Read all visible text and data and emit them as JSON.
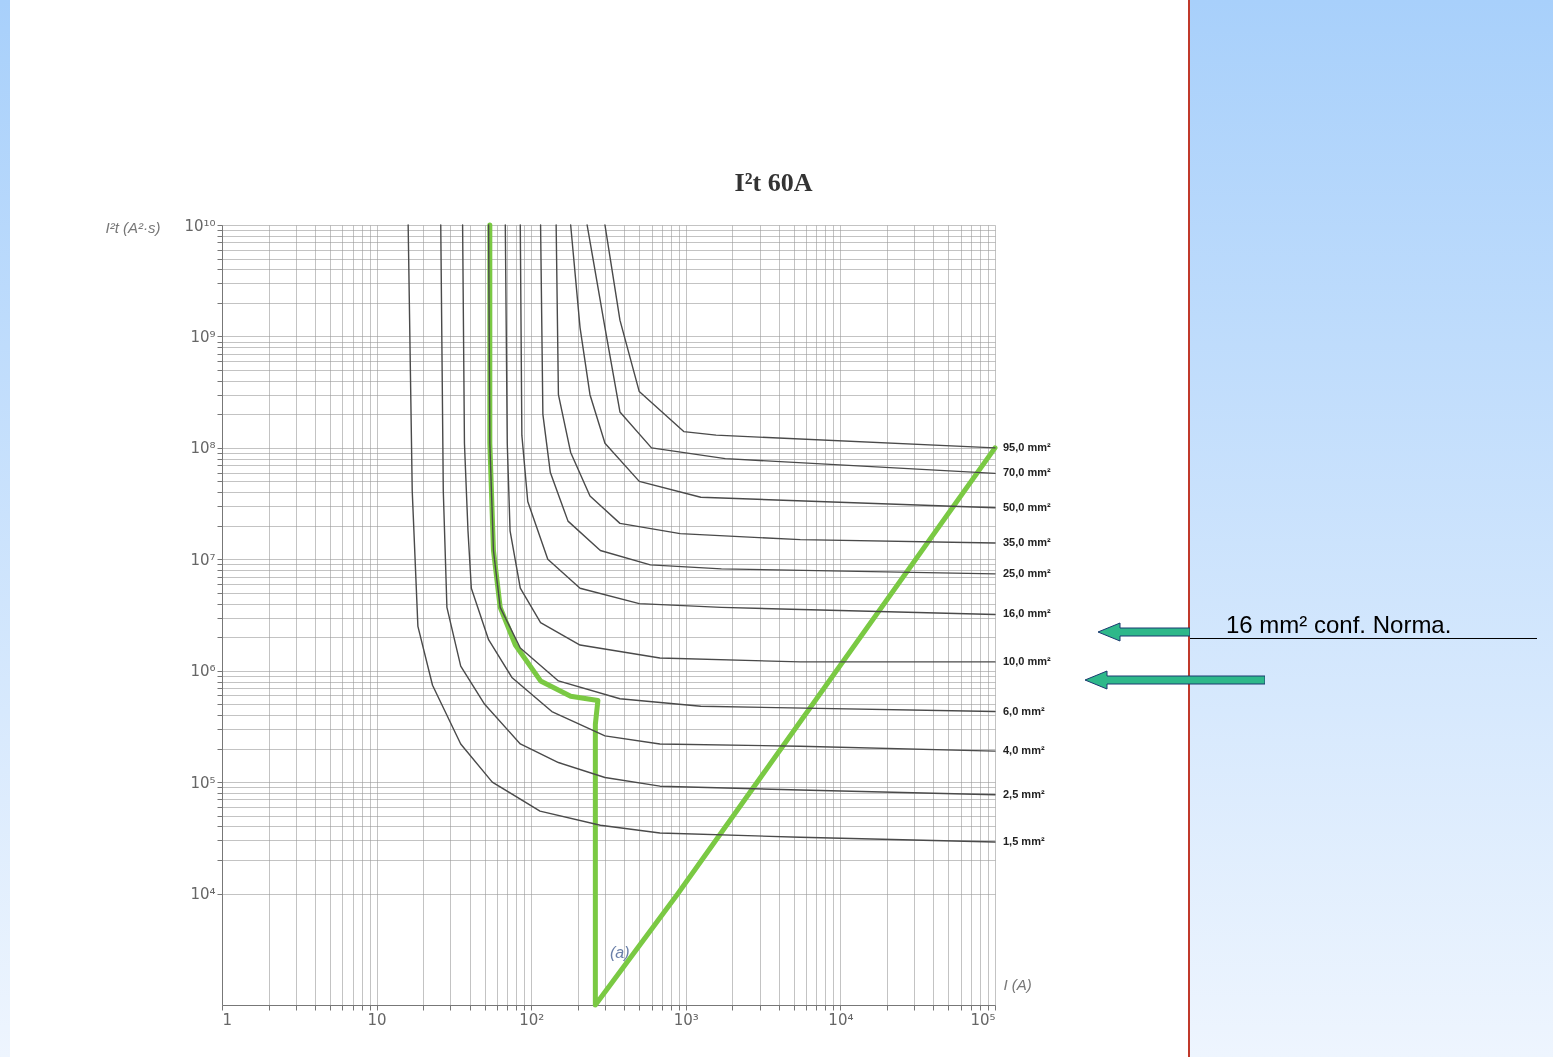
{
  "chart_data": {
    "type": "line",
    "title": "I²t 60A",
    "xlabel": "I (A)",
    "ylabel": "I²t (A²·s)",
    "log": "xy",
    "grid": true,
    "legend": false,
    "xlim": [
      1,
      100000
    ],
    "ylim": [
      1000,
      10000000000
    ],
    "xticks": [
      1,
      {
        "value": 2,
        "label": null
      },
      {
        "value": 3,
        "label": null
      },
      {
        "value": 4,
        "label": null
      },
      {
        "value": 5,
        "label": null
      },
      {
        "value": 6,
        "label": null
      },
      {
        "value": 7,
        "label": null
      },
      {
        "value": 8,
        "label": null
      },
      {
        "value": 9,
        "label": null
      },
      10,
      {
        "value": 20,
        "label": null
      },
      {
        "value": 30,
        "label": null
      },
      {
        "value": 40,
        "label": null
      },
      {
        "value": 50,
        "label": null
      },
      {
        "value": 60,
        "label": null
      },
      {
        "value": 70,
        "label": null
      },
      {
        "value": 80,
        "label": null
      },
      {
        "value": 90,
        "label": null
      },
      {
        "value": 100,
        "label": "10²"
      },
      {
        "value": 200,
        "label": null
      },
      {
        "value": 300,
        "label": null
      },
      {
        "value": 400,
        "label": null
      },
      {
        "value": 500,
        "label": null
      },
      {
        "value": 600,
        "label": null
      },
      {
        "value": 700,
        "label": null
      },
      {
        "value": 800,
        "label": null
      },
      {
        "value": 900,
        "label": null
      },
      {
        "value": 1000,
        "label": "10³"
      },
      {
        "value": 2000,
        "label": null
      },
      {
        "value": 3000,
        "label": null
      },
      {
        "value": 4000,
        "label": null
      },
      {
        "value": 5000,
        "label": null
      },
      {
        "value": 6000,
        "label": null
      },
      {
        "value": 7000,
        "label": null
      },
      {
        "value": 8000,
        "label": null
      },
      {
        "value": 9000,
        "label": null
      },
      {
        "value": 10000,
        "label": "10⁴"
      },
      {
        "value": 20000,
        "label": null
      },
      {
        "value": 30000,
        "label": null
      },
      {
        "value": 40000,
        "label": null
      },
      {
        "value": 50000,
        "label": null
      },
      {
        "value": 60000,
        "label": null
      },
      {
        "value": 70000,
        "label": null
      },
      {
        "value": 80000,
        "label": null
      },
      {
        "value": 90000,
        "label": null
      },
      {
        "value": 100000,
        "label": "10⁵"
      }
    ],
    "yticks": [
      {
        "value": 10000,
        "label": "10⁴"
      },
      {
        "value": 20000,
        "label": null
      },
      {
        "value": 30000,
        "label": null
      },
      {
        "value": 40000,
        "label": null
      },
      {
        "value": 50000,
        "label": null
      },
      {
        "value": 60000,
        "label": null
      },
      {
        "value": 70000,
        "label": null
      },
      {
        "value": 80000,
        "label": null
      },
      {
        "value": 90000,
        "label": null
      },
      {
        "value": 100000,
        "label": "10⁵"
      },
      {
        "value": 200000,
        "label": null
      },
      {
        "value": 300000,
        "label": null
      },
      {
        "value": 400000,
        "label": null
      },
      {
        "value": 500000,
        "label": null
      },
      {
        "value": 600000,
        "label": null
      },
      {
        "value": 700000,
        "label": null
      },
      {
        "value": 800000,
        "label": null
      },
      {
        "value": 900000,
        "label": null
      },
      {
        "value": 1000000,
        "label": "10⁶"
      },
      {
        "value": 2000000,
        "label": null
      },
      {
        "value": 3000000,
        "label": null
      },
      {
        "value": 4000000,
        "label": null
      },
      {
        "value": 5000000,
        "label": null
      },
      {
        "value": 6000000,
        "label": null
      },
      {
        "value": 7000000,
        "label": null
      },
      {
        "value": 8000000,
        "label": null
      },
      {
        "value": 9000000,
        "label": null
      },
      {
        "value": 10000000,
        "label": "10⁷"
      },
      {
        "value": 20000000,
        "label": null
      },
      {
        "value": 30000000,
        "label": null
      },
      {
        "value": 40000000,
        "label": null
      },
      {
        "value": 50000000,
        "label": null
      },
      {
        "value": 60000000,
        "label": null
      },
      {
        "value": 70000000,
        "label": null
      },
      {
        "value": 80000000,
        "label": null
      },
      {
        "value": 90000000,
        "label": null
      },
      {
        "value": 100000000,
        "label": "10⁸"
      },
      {
        "value": 200000000,
        "label": null
      },
      {
        "value": 300000000,
        "label": null
      },
      {
        "value": 400000000,
        "label": null
      },
      {
        "value": 500000000,
        "label": null
      },
      {
        "value": 600000000,
        "label": null
      },
      {
        "value": 700000000,
        "label": null
      },
      {
        "value": 800000000,
        "label": null
      },
      {
        "value": 900000000,
        "label": null
      },
      {
        "value": 1000000000,
        "label": "10⁹"
      },
      {
        "value": 2000000000,
        "label": null
      },
      {
        "value": 3000000000,
        "label": null
      },
      {
        "value": 4000000000,
        "label": null
      },
      {
        "value": 5000000000,
        "label": null
      },
      {
        "value": 6000000000,
        "label": null
      },
      {
        "value": 7000000000,
        "label": null
      },
      {
        "value": 8000000000,
        "label": null
      },
      {
        "value": 9000000000,
        "label": null
      },
      {
        "value": 10000000000,
        "label": "10¹⁰"
      }
    ],
    "series": [
      {
        "color": "#7ac943",
        "x": [
          54,
          54,
          57,
          63,
          79,
          115,
          180,
          270,
          260,
          260,
          890,
          100000
        ],
        "values": [
          10000000000,
          110000000,
          12000000,
          3700000,
          1700000,
          810000,
          590000,
          540000,
          330000,
          1000,
          10000,
          100000000
        ]
      },
      {
        "name": "95,0 mm²",
        "color": "#4a4a4a",
        "x": [
          300,
          375,
          500,
          970,
          1570,
          100000
        ],
        "values": [
          10000000000,
          1400000000,
          320000000,
          140000000,
          130000000,
          100000000
        ]
      },
      {
        "name": "70,0 mm²",
        "color": "#4a4a4a",
        "x": [
          230,
          300,
          375,
          600,
          1800,
          100000
        ],
        "values": [
          10000000000,
          1200000000,
          210000000,
          100000000,
          80000000,
          59000000
        ]
      },
      {
        "name": "50,0 mm²",
        "color": "#4a4a4a",
        "x": [
          180,
          207,
          240,
          300,
          500,
          1250,
          100000
        ],
        "values": [
          10000000000,
          1200000000,
          300000000,
          110000000,
          50000000,
          36000000,
          29000000
        ]
      },
      {
        "name": "35,0 mm²",
        "color": "#4a4a4a",
        "x": [
          145,
          150,
          180,
          240,
          375,
          920,
          5500,
          100000
        ],
        "values": [
          10000000000,
          300000000,
          91000000,
          37000000,
          21000000,
          17000000,
          15000000,
          14000000
        ]
      },
      {
        "name": "25,0 mm²",
        "color": "#4a4a4a",
        "x": [
          115,
          119,
          133,
          173,
          280,
          590,
          1700,
          100000
        ],
        "values": [
          10000000000,
          200000000,
          60000000,
          22000000,
          12000000,
          8900000,
          8200000,
          7400000
        ]
      },
      {
        "name": "16,0 mm²",
        "color": "#4a4a4a",
        "x": [
          85,
          87,
          95,
          128,
          207,
          500,
          1700,
          100000
        ],
        "values": [
          10000000000,
          130000000,
          33000000,
          10000000,
          5500000,
          4000000,
          3700000,
          3200000
        ]
      },
      {
        "name": "10,0 mm²",
        "color": "#4a4a4a",
        "x": [
          68,
          70,
          73,
          85,
          115,
          207,
          680,
          5500,
          100000
        ],
        "values": [
          10000000000,
          110000000,
          18000000,
          5500000,
          2700000,
          1700000,
          1300000,
          1200000,
          1200000
        ]
      },
      {
        "name": "6,0 mm²",
        "color": "#4a4a4a",
        "x": [
          53,
          54,
          57,
          63,
          85,
          150,
          375,
          1250,
          100000
        ],
        "values": [
          10000000000,
          110000000,
          12000000,
          3700000,
          1600000,
          810000,
          560000,
          480000,
          430000
        ]
      },
      {
        "name": "4,0 mm²",
        "color": "#4a4a4a",
        "x": [
          36,
          37,
          39,
          41,
          53,
          75,
          136,
          300,
          680,
          5500,
          100000
        ],
        "values": [
          10000000000,
          110000000,
          18000000,
          5500000,
          1900000,
          870000,
          430000,
          260000,
          220000,
          210000,
          190000
        ]
      },
      {
        "name": "2,5 mm²",
        "color": "#4a4a4a",
        "x": [
          26,
          27,
          28.5,
          35,
          50,
          85,
          150,
          300,
          680,
          5500,
          100000
        ],
        "values": [
          10000000000,
          41000000,
          3700000,
          1100000,
          500000,
          220000,
          150000,
          110000,
          92000,
          85000,
          77000
        ]
      },
      {
        "name": "1,5 mm²",
        "color": "#4a4a4a",
        "x": [
          16,
          17,
          18.5,
          23,
          35,
          56,
          114,
          280,
          680,
          5500,
          100000
        ],
        "values": [
          10000000000,
          41000000,
          2500000,
          740000,
          220000,
          100000,
          55000,
          41000,
          35000,
          32000,
          29000
        ]
      }
    ],
    "annotations": [
      "16 mm² conf. Norma.",
      "(a)"
    ]
  }
}
